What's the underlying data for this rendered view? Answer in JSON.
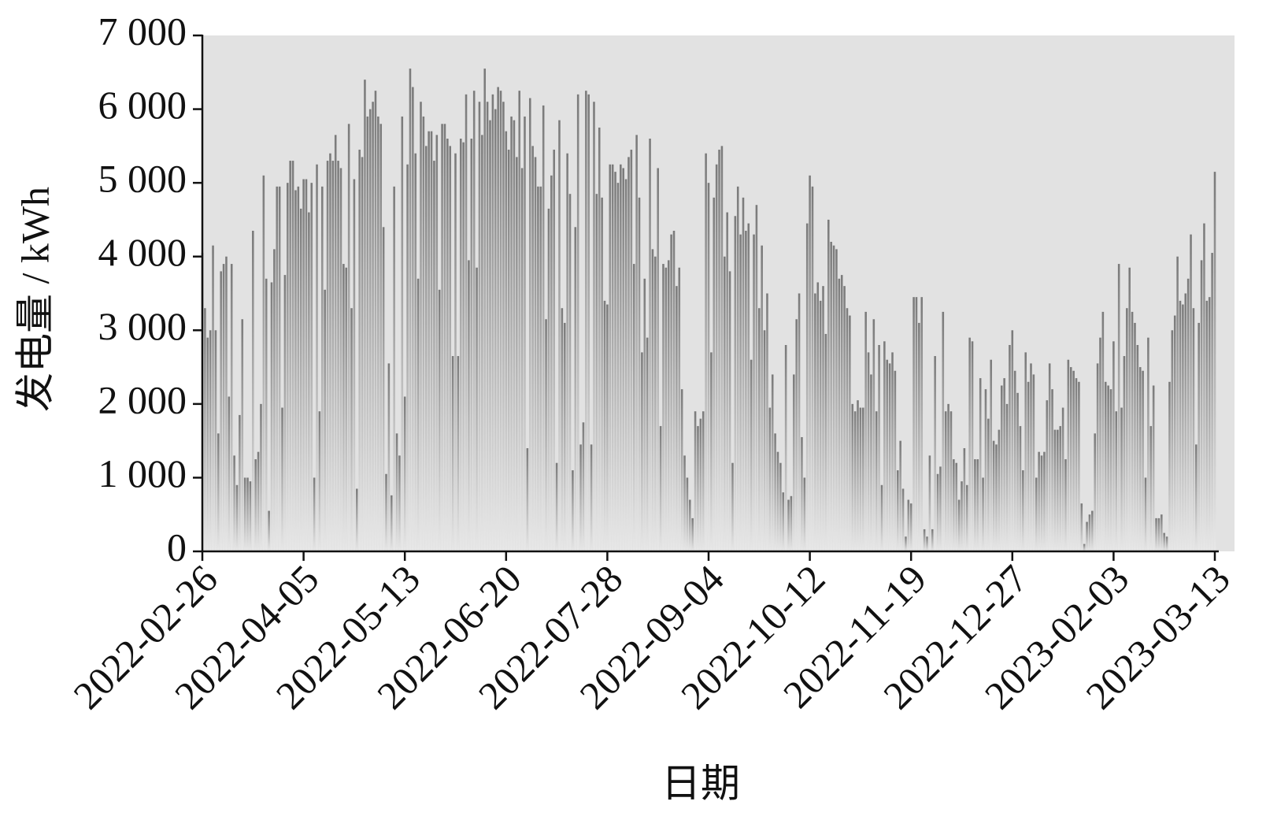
{
  "chart_data": {
    "type": "bar",
    "x_label": "日期",
    "y_label": "发电量 / kWh",
    "color": "#7a7a7a",
    "background": "#e2e2e2",
    "ylim": [
      0,
      7000
    ],
    "yticks": [
      {
        "value": 0,
        "label": "0"
      },
      {
        "value": 1000,
        "label": "1 000"
      },
      {
        "value": 2000,
        "label": "2 000"
      },
      {
        "value": 3000,
        "label": "3 000"
      },
      {
        "value": 4000,
        "label": "4 000"
      },
      {
        "value": 5000,
        "label": "5 000"
      },
      {
        "value": 6000,
        "label": "6 000"
      },
      {
        "value": 7000,
        "label": "7 000"
      }
    ],
    "categories": [
      "2022-02-26",
      null,
      null,
      null,
      null,
      null,
      null,
      null,
      null,
      null,
      null,
      null,
      null,
      null,
      null,
      null,
      null,
      null,
      null,
      null,
      null,
      null,
      null,
      null,
      null,
      null,
      null,
      null,
      null,
      null,
      null,
      null,
      null,
      null,
      null,
      null,
      null,
      null,
      "2022-04-05",
      null,
      null,
      null,
      null,
      null,
      null,
      null,
      null,
      null,
      null,
      null,
      null,
      null,
      null,
      null,
      null,
      null,
      null,
      null,
      null,
      null,
      null,
      null,
      null,
      null,
      null,
      null,
      null,
      null,
      null,
      null,
      null,
      null,
      null,
      null,
      null,
      null,
      "2022-05-13",
      null,
      null,
      null,
      null,
      null,
      null,
      null,
      null,
      null,
      null,
      null,
      null,
      null,
      null,
      null,
      null,
      null,
      null,
      null,
      null,
      null,
      null,
      null,
      null,
      null,
      null,
      null,
      null,
      null,
      null,
      null,
      null,
      null,
      null,
      null,
      null,
      null,
      "2022-06-20",
      null,
      null,
      null,
      null,
      null,
      null,
      null,
      null,
      null,
      null,
      null,
      null,
      null,
      null,
      null,
      null,
      null,
      null,
      null,
      null,
      null,
      null,
      null,
      null,
      null,
      null,
      null,
      null,
      null,
      null,
      null,
      null,
      null,
      null,
      null,
      null,
      null,
      "2022-07-28",
      null,
      null,
      null,
      null,
      null,
      null,
      null,
      null,
      null,
      null,
      null,
      null,
      null,
      null,
      null,
      null,
      null,
      null,
      null,
      null,
      null,
      null,
      null,
      null,
      null,
      null,
      null,
      null,
      null,
      null,
      null,
      null,
      null,
      null,
      null,
      null,
      null,
      "2022-09-04",
      null,
      null,
      null,
      null,
      null,
      null,
      null,
      null,
      null,
      null,
      null,
      null,
      null,
      null,
      null,
      null,
      null,
      null,
      null,
      null,
      null,
      null,
      null,
      null,
      null,
      null,
      null,
      null,
      null,
      null,
      null,
      null,
      null,
      null,
      null,
      null,
      null,
      "2022-10-12",
      null,
      null,
      null,
      null,
      null,
      null,
      null,
      null,
      null,
      null,
      null,
      null,
      null,
      null,
      null,
      null,
      null,
      null,
      null,
      null,
      null,
      null,
      null,
      null,
      null,
      null,
      null,
      null,
      null,
      null,
      null,
      null,
      null,
      null,
      null,
      null,
      null,
      "2022-11-19",
      null,
      null,
      null,
      null,
      null,
      null,
      null,
      null,
      null,
      null,
      null,
      null,
      null,
      null,
      null,
      null,
      null,
      null,
      null,
      null,
      null,
      null,
      null,
      null,
      null,
      null,
      null,
      null,
      null,
      null,
      null,
      null,
      null,
      null,
      null,
      null,
      null,
      "2022-12-27",
      null,
      null,
      null,
      null,
      null,
      null,
      null,
      null,
      null,
      null,
      null,
      null,
      null,
      null,
      null,
      null,
      null,
      null,
      null,
      null,
      null,
      null,
      null,
      null,
      null,
      null,
      null,
      null,
      null,
      null,
      null,
      null,
      null,
      null,
      null,
      null,
      null,
      "2023-02-03",
      null,
      null,
      null,
      null,
      null,
      null,
      null,
      null,
      null,
      null,
      null,
      null,
      null,
      null,
      null,
      null,
      null,
      null,
      null,
      null,
      null,
      null,
      null,
      null,
      null,
      null,
      null,
      null,
      null,
      null,
      null,
      null,
      null,
      null,
      null,
      null,
      null,
      "2023-03-13"
    ],
    "values": [
      4050,
      3300,
      2900,
      3000,
      4150,
      3000,
      1600,
      3800,
      3900,
      4000,
      2100,
      3900,
      1300,
      900,
      1850,
      3150,
      1000,
      1000,
      950,
      4350,
      1250,
      1350,
      2000,
      5100,
      3700,
      550,
      3650,
      4100,
      4950,
      4950,
      1950,
      3750,
      5000,
      5300,
      5300,
      4900,
      4950,
      4650,
      5050,
      5050,
      4600,
      5000,
      1000,
      5250,
      1900,
      4950,
      3550,
      5300,
      5400,
      5300,
      5650,
      5300,
      5200,
      3900,
      3850,
      5800,
      3300,
      5050,
      850,
      5450,
      5350,
      6400,
      5900,
      6000,
      6100,
      6250,
      5900,
      5800,
      4400,
      1050,
      2550,
      760,
      4950,
      1600,
      1300,
      5900,
      2100,
      5250,
      6550,
      6300,
      5400,
      3700,
      6100,
      5900,
      5500,
      5700,
      5700,
      5300,
      5650,
      3550,
      5800,
      5800,
      5600,
      5500,
      2650,
      5400,
      2650,
      5600,
      5550,
      6200,
      3950,
      5600,
      6250,
      3850,
      6100,
      5650,
      6550,
      6100,
      5850,
      6200,
      6000,
      6300,
      6250,
      6100,
      5700,
      5450,
      5900,
      5850,
      5350,
      6250,
      5200,
      5900,
      1400,
      6150,
      5500,
      5350,
      4950,
      4950,
      6050,
      3150,
      4650,
      5100,
      5450,
      1200,
      5850,
      3300,
      3100,
      5400,
      4850,
      1100,
      4400,
      6200,
      1450,
      1750,
      6250,
      6200,
      1450,
      6100,
      4850,
      5750,
      4800,
      3400,
      3350,
      5250,
      5250,
      5150,
      5000,
      5250,
      5200,
      5050,
      5350,
      5450,
      3900,
      5650,
      4800,
      2700,
      3700,
      2900,
      5600,
      4100,
      4000,
      5200,
      1700,
      3900,
      3850,
      3950,
      4300,
      4350,
      3600,
      3850,
      2200,
      1300,
      1000,
      700,
      450,
      1900,
      1700,
      1800,
      1900,
      5400,
      5000,
      2700,
      4800,
      5250,
      5450,
      5500,
      4000,
      4600,
      3800,
      1200,
      4550,
      4950,
      4300,
      4800,
      4350,
      4450,
      2600,
      4300,
      4700,
      3300,
      4150,
      3000,
      3500,
      1950,
      2400,
      1600,
      1350,
      1200,
      800,
      2800,
      700,
      750,
      2400,
      3150,
      3500,
      1550,
      1000,
      4450,
      5100,
      4950,
      3500,
      3650,
      3400,
      3600,
      2950,
      4500,
      4200,
      4150,
      4100,
      3700,
      3750,
      3600,
      3300,
      3200,
      2000,
      1900,
      2050,
      1950,
      1950,
      3250,
      2700,
      2400,
      3150,
      1900,
      2800,
      900,
      2850,
      2600,
      2550,
      2700,
      2450,
      1100,
      1500,
      850,
      200,
      700,
      650,
      3450,
      3450,
      3100,
      3450,
      300,
      200,
      1300,
      300,
      2650,
      1050,
      1150,
      3250,
      1900,
      2000,
      1900,
      1250,
      1200,
      700,
      950,
      1400,
      900,
      2900,
      2850,
      1250,
      1250,
      2350,
      1000,
      2200,
      1800,
      2600,
      1500,
      1450,
      1650,
      2250,
      2350,
      2000,
      2800,
      3000,
      2450,
      2150,
      1700,
      1100,
      2700,
      2300,
      2550,
      2400,
      1000,
      1350,
      1300,
      1350,
      2050,
      2550,
      2200,
      1650,
      1650,
      1700,
      1950,
      1250,
      2600,
      2500,
      2450,
      2350,
      2300,
      650,
      100,
      400,
      500,
      550,
      1600,
      2550,
      2900,
      3250,
      2300,
      2250,
      2200,
      2850,
      1900,
      3900,
      1950,
      2650,
      3300,
      3850,
      3250,
      3100,
      2800,
      2500,
      2450,
      1000,
      2900,
      1700,
      2250,
      450,
      450,
      500,
      250,
      200,
      2300,
      3000,
      3200,
      4000,
      3400,
      3350,
      3500,
      3700,
      4300,
      3300,
      1450,
      3100,
      3950,
      4450,
      3400,
      3450,
      4050,
      5150
    ]
  }
}
